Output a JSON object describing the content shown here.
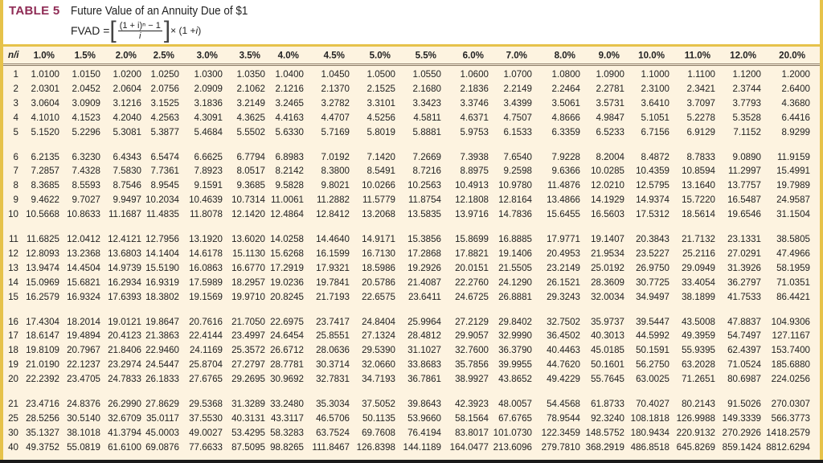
{
  "header": {
    "table_label": "TABLE 5",
    "title": "Future Value of an Annuity Due of $1",
    "formula": {
      "lhs": "FVAD =",
      "numerator": "(1 + i)ⁿ − 1",
      "denominator": "i",
      "times": "× (1 + ",
      "i": "i",
      "close": ")"
    }
  },
  "colors": {
    "label": "#8f2b55",
    "border": "#e6c24a",
    "background": "#fdf3e0"
  },
  "table": {
    "corner": "n/i",
    "columns": [
      "1.0%",
      "1.5%",
      "2.0%",
      "2.5%",
      "3.0%",
      "3.5%",
      "4.0%",
      "4.5%",
      "5.0%",
      "5.5%",
      "6.0%",
      "7.0%",
      "8.0%",
      "9.0%",
      "10.0%",
      "11.0%",
      "12.0%",
      "20.0%"
    ],
    "rows": [
      {
        "n": "1",
        "values": [
          "1.0100",
          "1.0150",
          "1.0200",
          "1.0250",
          "1.0300",
          "1.0350",
          "1.0400",
          "1.0450",
          "1.0500",
          "1.0550",
          "1.0600",
          "1.0700",
          "1.0800",
          "1.0900",
          "1.1000",
          "1.1100",
          "1.1200",
          "1.2000"
        ]
      },
      {
        "n": "2",
        "values": [
          "2.0301",
          "2.0452",
          "2.0604",
          "2.0756",
          "2.0909",
          "2.1062",
          "2.1216",
          "2.1370",
          "2.1525",
          "2.1680",
          "2.1836",
          "2.2149",
          "2.2464",
          "2.2781",
          "2.3100",
          "2.3421",
          "2.3744",
          "2.6400"
        ]
      },
      {
        "n": "3",
        "values": [
          "3.0604",
          "3.0909",
          "3.1216",
          "3.1525",
          "3.1836",
          "3.2149",
          "3.2465",
          "3.2782",
          "3.3101",
          "3.3423",
          "3.3746",
          "3.4399",
          "3.5061",
          "3.5731",
          "3.6410",
          "3.7097",
          "3.7793",
          "4.3680"
        ]
      },
      {
        "n": "4",
        "values": [
          "4.1010",
          "4.1523",
          "4.2040",
          "4.2563",
          "4.3091",
          "4.3625",
          "4.4163",
          "4.4707",
          "4.5256",
          "4.5811",
          "4.6371",
          "4.7507",
          "4.8666",
          "4.9847",
          "5.1051",
          "5.2278",
          "5.3528",
          "6.4416"
        ]
      },
      {
        "n": "5",
        "values": [
          "5.1520",
          "5.2296",
          "5.3081",
          "5.3877",
          "5.4684",
          "5.5502",
          "5.6330",
          "5.7169",
          "5.8019",
          "5.8881",
          "5.9753",
          "6.1533",
          "6.3359",
          "6.5233",
          "6.7156",
          "6.9129",
          "7.1152",
          "8.9299"
        ]
      },
      {
        "n": "6",
        "values": [
          "6.2135",
          "6.3230",
          "6.4343",
          "6.5474",
          "6.6625",
          "6.7794",
          "6.8983",
          "7.0192",
          "7.1420",
          "7.2669",
          "7.3938",
          "7.6540",
          "7.9228",
          "8.2004",
          "8.4872",
          "8.7833",
          "9.0890",
          "11.9159"
        ]
      },
      {
        "n": "7",
        "values": [
          "7.2857",
          "7.4328",
          "7.5830",
          "7.7361",
          "7.8923",
          "8.0517",
          "8.2142",
          "8.3800",
          "8.5491",
          "8.7216",
          "8.8975",
          "9.2598",
          "9.6366",
          "10.0285",
          "10.4359",
          "10.8594",
          "11.2997",
          "15.4991"
        ]
      },
      {
        "n": "8",
        "values": [
          "8.3685",
          "8.5593",
          "8.7546",
          "8.9545",
          "9.1591",
          "9.3685",
          "9.5828",
          "9.8021",
          "10.0266",
          "10.2563",
          "10.4913",
          "10.9780",
          "11.4876",
          "12.0210",
          "12.5795",
          "13.1640",
          "13.7757",
          "19.7989"
        ]
      },
      {
        "n": "9",
        "values": [
          "9.4622",
          "9.7027",
          "9.9497",
          "10.2034",
          "10.4639",
          "10.7314",
          "11.0061",
          "11.2882",
          "11.5779",
          "11.8754",
          "12.1808",
          "12.8164",
          "13.4866",
          "14.1929",
          "14.9374",
          "15.7220",
          "16.5487",
          "24.9587"
        ]
      },
      {
        "n": "10",
        "values": [
          "10.5668",
          "10.8633",
          "11.1687",
          "11.4835",
          "11.8078",
          "12.1420",
          "12.4864",
          "12.8412",
          "13.2068",
          "13.5835",
          "13.9716",
          "14.7836",
          "15.6455",
          "16.5603",
          "17.5312",
          "18.5614",
          "19.6546",
          "31.1504"
        ]
      },
      {
        "n": "11",
        "values": [
          "11.6825",
          "12.0412",
          "12.4121",
          "12.7956",
          "13.1920",
          "13.6020",
          "14.0258",
          "14.4640",
          "14.9171",
          "15.3856",
          "15.8699",
          "16.8885",
          "17.9771",
          "19.1407",
          "20.3843",
          "21.7132",
          "23.1331",
          "38.5805"
        ]
      },
      {
        "n": "12",
        "values": [
          "12.8093",
          "13.2368",
          "13.6803",
          "14.1404",
          "14.6178",
          "15.1130",
          "15.6268",
          "16.1599",
          "16.7130",
          "17.2868",
          "17.8821",
          "19.1406",
          "20.4953",
          "21.9534",
          "23.5227",
          "25.2116",
          "27.0291",
          "47.4966"
        ]
      },
      {
        "n": "13",
        "values": [
          "13.9474",
          "14.4504",
          "14.9739",
          "15.5190",
          "16.0863",
          "16.6770",
          "17.2919",
          "17.9321",
          "18.5986",
          "19.2926",
          "20.0151",
          "21.5505",
          "23.2149",
          "25.0192",
          "26.9750",
          "29.0949",
          "31.3926",
          "58.1959"
        ]
      },
      {
        "n": "14",
        "values": [
          "15.0969",
          "15.6821",
          "16.2934",
          "16.9319",
          "17.5989",
          "18.2957",
          "19.0236",
          "19.7841",
          "20.5786",
          "21.4087",
          "22.2760",
          "24.1290",
          "26.1521",
          "28.3609",
          "30.7725",
          "33.4054",
          "36.2797",
          "71.0351"
        ]
      },
      {
        "n": "15",
        "values": [
          "16.2579",
          "16.9324",
          "17.6393",
          "18.3802",
          "19.1569",
          "19.9710",
          "20.8245",
          "21.7193",
          "22.6575",
          "23.6411",
          "24.6725",
          "26.8881",
          "29.3243",
          "32.0034",
          "34.9497",
          "38.1899",
          "41.7533",
          "86.4421"
        ]
      },
      {
        "n": "16",
        "values": [
          "17.4304",
          "18.2014",
          "19.0121",
          "19.8647",
          "20.7616",
          "21.7050",
          "22.6975",
          "23.7417",
          "24.8404",
          "25.9964",
          "27.2129",
          "29.8402",
          "32.7502",
          "35.9737",
          "39.5447",
          "43.5008",
          "47.8837",
          "104.9306"
        ]
      },
      {
        "n": "17",
        "values": [
          "18.6147",
          "19.4894",
          "20.4123",
          "21.3863",
          "22.4144",
          "23.4997",
          "24.6454",
          "25.8551",
          "27.1324",
          "28.4812",
          "29.9057",
          "32.9990",
          "36.4502",
          "40.3013",
          "44.5992",
          "49.3959",
          "54.7497",
          "127.1167"
        ]
      },
      {
        "n": "18",
        "values": [
          "19.8109",
          "20.7967",
          "21.8406",
          "22.9460",
          "24.1169",
          "25.3572",
          "26.6712",
          "28.0636",
          "29.5390",
          "31.1027",
          "32.7600",
          "36.3790",
          "40.4463",
          "45.0185",
          "50.1591",
          "55.9395",
          "62.4397",
          "153.7400"
        ]
      },
      {
        "n": "19",
        "values": [
          "21.0190",
          "22.1237",
          "23.2974",
          "24.5447",
          "25.8704",
          "27.2797",
          "28.7781",
          "30.3714",
          "32.0660",
          "33.8683",
          "35.7856",
          "39.9955",
          "44.7620",
          "50.1601",
          "56.2750",
          "63.2028",
          "71.0524",
          "185.6880"
        ]
      },
      {
        "n": "20",
        "values": [
          "22.2392",
          "23.4705",
          "24.7833",
          "26.1833",
          "27.6765",
          "29.2695",
          "30.9692",
          "32.7831",
          "34.7193",
          "36.7861",
          "38.9927",
          "43.8652",
          "49.4229",
          "55.7645",
          "63.0025",
          "71.2651",
          "80.6987",
          "224.0256"
        ]
      },
      {
        "n": "21",
        "values": [
          "23.4716",
          "24.8376",
          "26.2990",
          "27.8629",
          "29.5368",
          "31.3289",
          "33.2480",
          "35.3034",
          "37.5052",
          "39.8643",
          "42.3923",
          "48.0057",
          "54.4568",
          "61.8733",
          "70.4027",
          "80.2143",
          "91.5026",
          "270.0307"
        ]
      },
      {
        "n": "25",
        "values": [
          "28.5256",
          "30.5140",
          "32.6709",
          "35.0117",
          "37.5530",
          "40.3131",
          "43.3117",
          "46.5706",
          "50.1135",
          "53.9660",
          "58.1564",
          "67.6765",
          "78.9544",
          "92.3240",
          "108.1818",
          "126.9988",
          "149.3339",
          "566.3773"
        ]
      },
      {
        "n": "30",
        "values": [
          "35.1327",
          "38.1018",
          "41.3794",
          "45.0003",
          "49.0027",
          "53.4295",
          "58.3283",
          "63.7524",
          "69.7608",
          "76.4194",
          "83.8017",
          "101.0730",
          "122.3459",
          "148.5752",
          "180.9434",
          "220.9132",
          "270.2926",
          "1418.2579"
        ]
      },
      {
        "n": "40",
        "values": [
          "49.3752",
          "55.0819",
          "61.6100",
          "69.0876",
          "77.6633",
          "87.5095",
          "98.8265",
          "111.8467",
          "126.8398",
          "144.1189",
          "164.0477",
          "213.6096",
          "279.7810",
          "368.2919",
          "486.8518",
          "645.8269",
          "859.1424",
          "8812.6294"
        ]
      }
    ]
  }
}
